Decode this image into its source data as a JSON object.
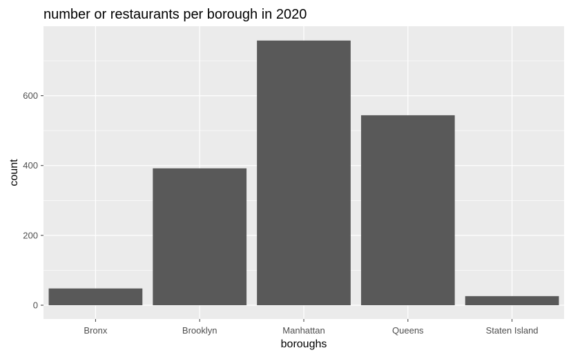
{
  "chart_data": {
    "type": "bar",
    "title": "number or restaurants per borough in 2020",
    "xlabel": "boroughs",
    "ylabel": "count",
    "categories": [
      "Bronx",
      "Brooklyn",
      "Manhattan",
      "Queens",
      "Staten Island"
    ],
    "values": [
      48,
      392,
      758,
      544,
      26
    ],
    "ylim": [
      0,
      790
    ],
    "yticks": [
      0,
      200,
      400,
      600
    ],
    "ytick_labels": [
      "0",
      "200",
      "400",
      "600"
    ],
    "grid": true,
    "legend": "none",
    "colors": {
      "panel_background": "#EBEBEB",
      "grid_line": "#FFFFFF",
      "bar_fill": "#595959",
      "tick_text": "#4D4D4D",
      "title_text": "#000000"
    }
  }
}
